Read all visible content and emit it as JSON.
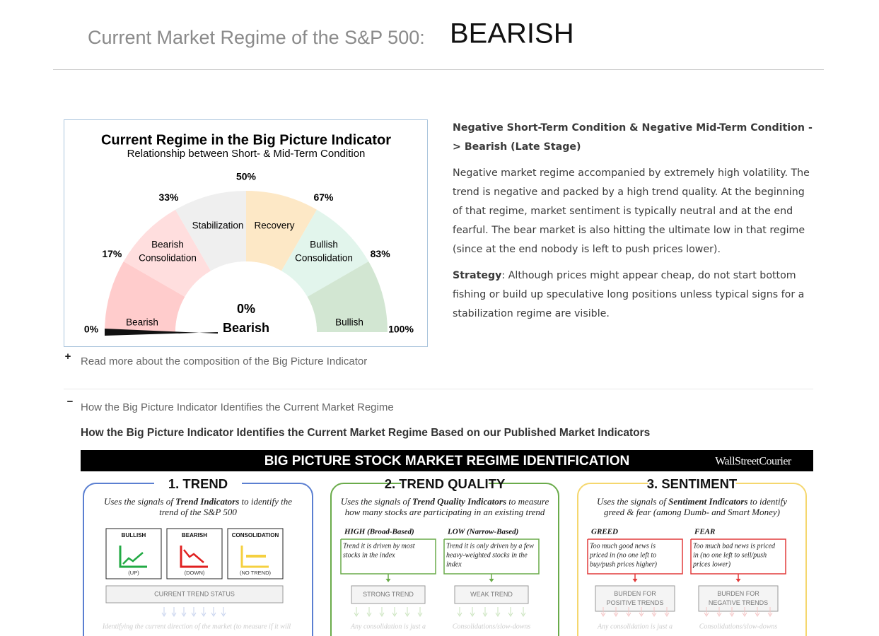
{
  "header": {
    "label": "Current Market Regime of the S&P 500:",
    "regime": "BEARISH"
  },
  "gauge": {
    "title": "Current Regime in the Big Picture Indicator",
    "subtitle": "Relationship between Short- & Mid-Term Condition",
    "scale_labels": [
      "0%",
      "17%",
      "33%",
      "50%",
      "67%",
      "83%",
      "100%"
    ],
    "segments": [
      [
        "Bearish"
      ],
      [
        "Bearish",
        "Consolidation"
      ],
      [
        "Stabilization"
      ],
      [
        "Recovery"
      ],
      [
        "Bullish",
        "Consolidation"
      ],
      [
        "Bullish"
      ]
    ],
    "reading": {
      "value": 0,
      "label": "0%"
    },
    "reading_regime": "Bearish"
  },
  "description": {
    "heading": "Negative Short-Term Condition & Negative Mid-Term Condition -> Bearish (Late Stage)",
    "body": "Negative market regime accompanied by extremely high volatility. The trend is negative and packed by a high trend quality. At the beginning of that regime, market sentiment is typically neutral and at the end fearful. The bear market is also hitting the ultimate low in that regime (since at the end nobody is left to push prices lower).",
    "strategy_label": "Strategy",
    "strategy_text": ": Although prices might appear cheap, do not start bottom fishing or build up speculative long positions unless typical signs for a stabilization regime are visible."
  },
  "accordions": [
    {
      "icon": "+",
      "title": "Read more about the composition of the Big Picture Indicator"
    },
    {
      "icon": "−",
      "title": "How the Big Picture Indicator Identifies the Current Market Regime",
      "heading": "How the Big Picture Indicator Identifies the Current Market Regime Based on our Published Market Indicators"
    }
  ],
  "infographic": {
    "title": "BIG PICTURE STOCK MARKET REGIME IDENTIFICATION",
    "brand": "WallStreetCourier",
    "trend": {
      "title": "1. TREND",
      "desc": [
        [
          "Uses the signals of ",
          "Trend Indicators",
          " to identify the"
        ],
        [
          "trend of the S&P 500"
        ]
      ],
      "items": [
        {
          "label": "BULLISH",
          "sub": "(UP)"
        },
        {
          "label": "BEARISH",
          "sub": "(DOWN)"
        },
        {
          "label": "CONSOLIDATION",
          "sub": "(NO TREND)"
        }
      ],
      "status": "CURRENT TREND STATUS",
      "footnote": "Identifying the current direction of the market (to measure if it will"
    },
    "columns": [
      {
        "title": "2. TREND QUALITY",
        "desc": [
          [
            "Uses the signals of ",
            "Trend Quality Indicators",
            " to measure"
          ],
          [
            "how many stocks are participating in an existing trend"
          ]
        ],
        "cases": [
          {
            "label": "HIGH (Broad-Based)",
            "text": [
              "Trend it is driven by most",
              "stocks in the index"
            ],
            "result": [
              "STRONG TREND"
            ],
            "footnote": "Any consolidation is just a"
          },
          {
            "label": "LOW (Narrow-Based)",
            "text": [
              "Trend it is only driven by a few",
              "heavy-weighted stocks in the",
              "index"
            ],
            "result": [
              "WEAK TREND"
            ],
            "footnote": "Consolidations/slow-downs"
          }
        ]
      },
      {
        "title": "3. SENTIMENT",
        "desc": [
          [
            "Uses the signals of ",
            "Sentiment Indicators",
            " to identify"
          ],
          [
            "greed & fear (among Dumb- and Smart Money)"
          ]
        ],
        "cases": [
          {
            "label": "GREED",
            "text": [
              "Too much good news is",
              "priced in (no one left to",
              "buy/push prices higher)"
            ],
            "result": [
              "BURDEN FOR",
              "POSITIVE TRENDS"
            ],
            "footnote": "Any consolidation is just a"
          },
          {
            "label": "FEAR",
            "text": [
              "Too much bad news is priced",
              "in (no one left to sell/push",
              "prices lower)"
            ],
            "result": [
              "BURDEN FOR",
              "NEGATIVE TRENDS"
            ],
            "footnote": "Consolidations/slow-downs"
          }
        ]
      }
    ]
  }
}
